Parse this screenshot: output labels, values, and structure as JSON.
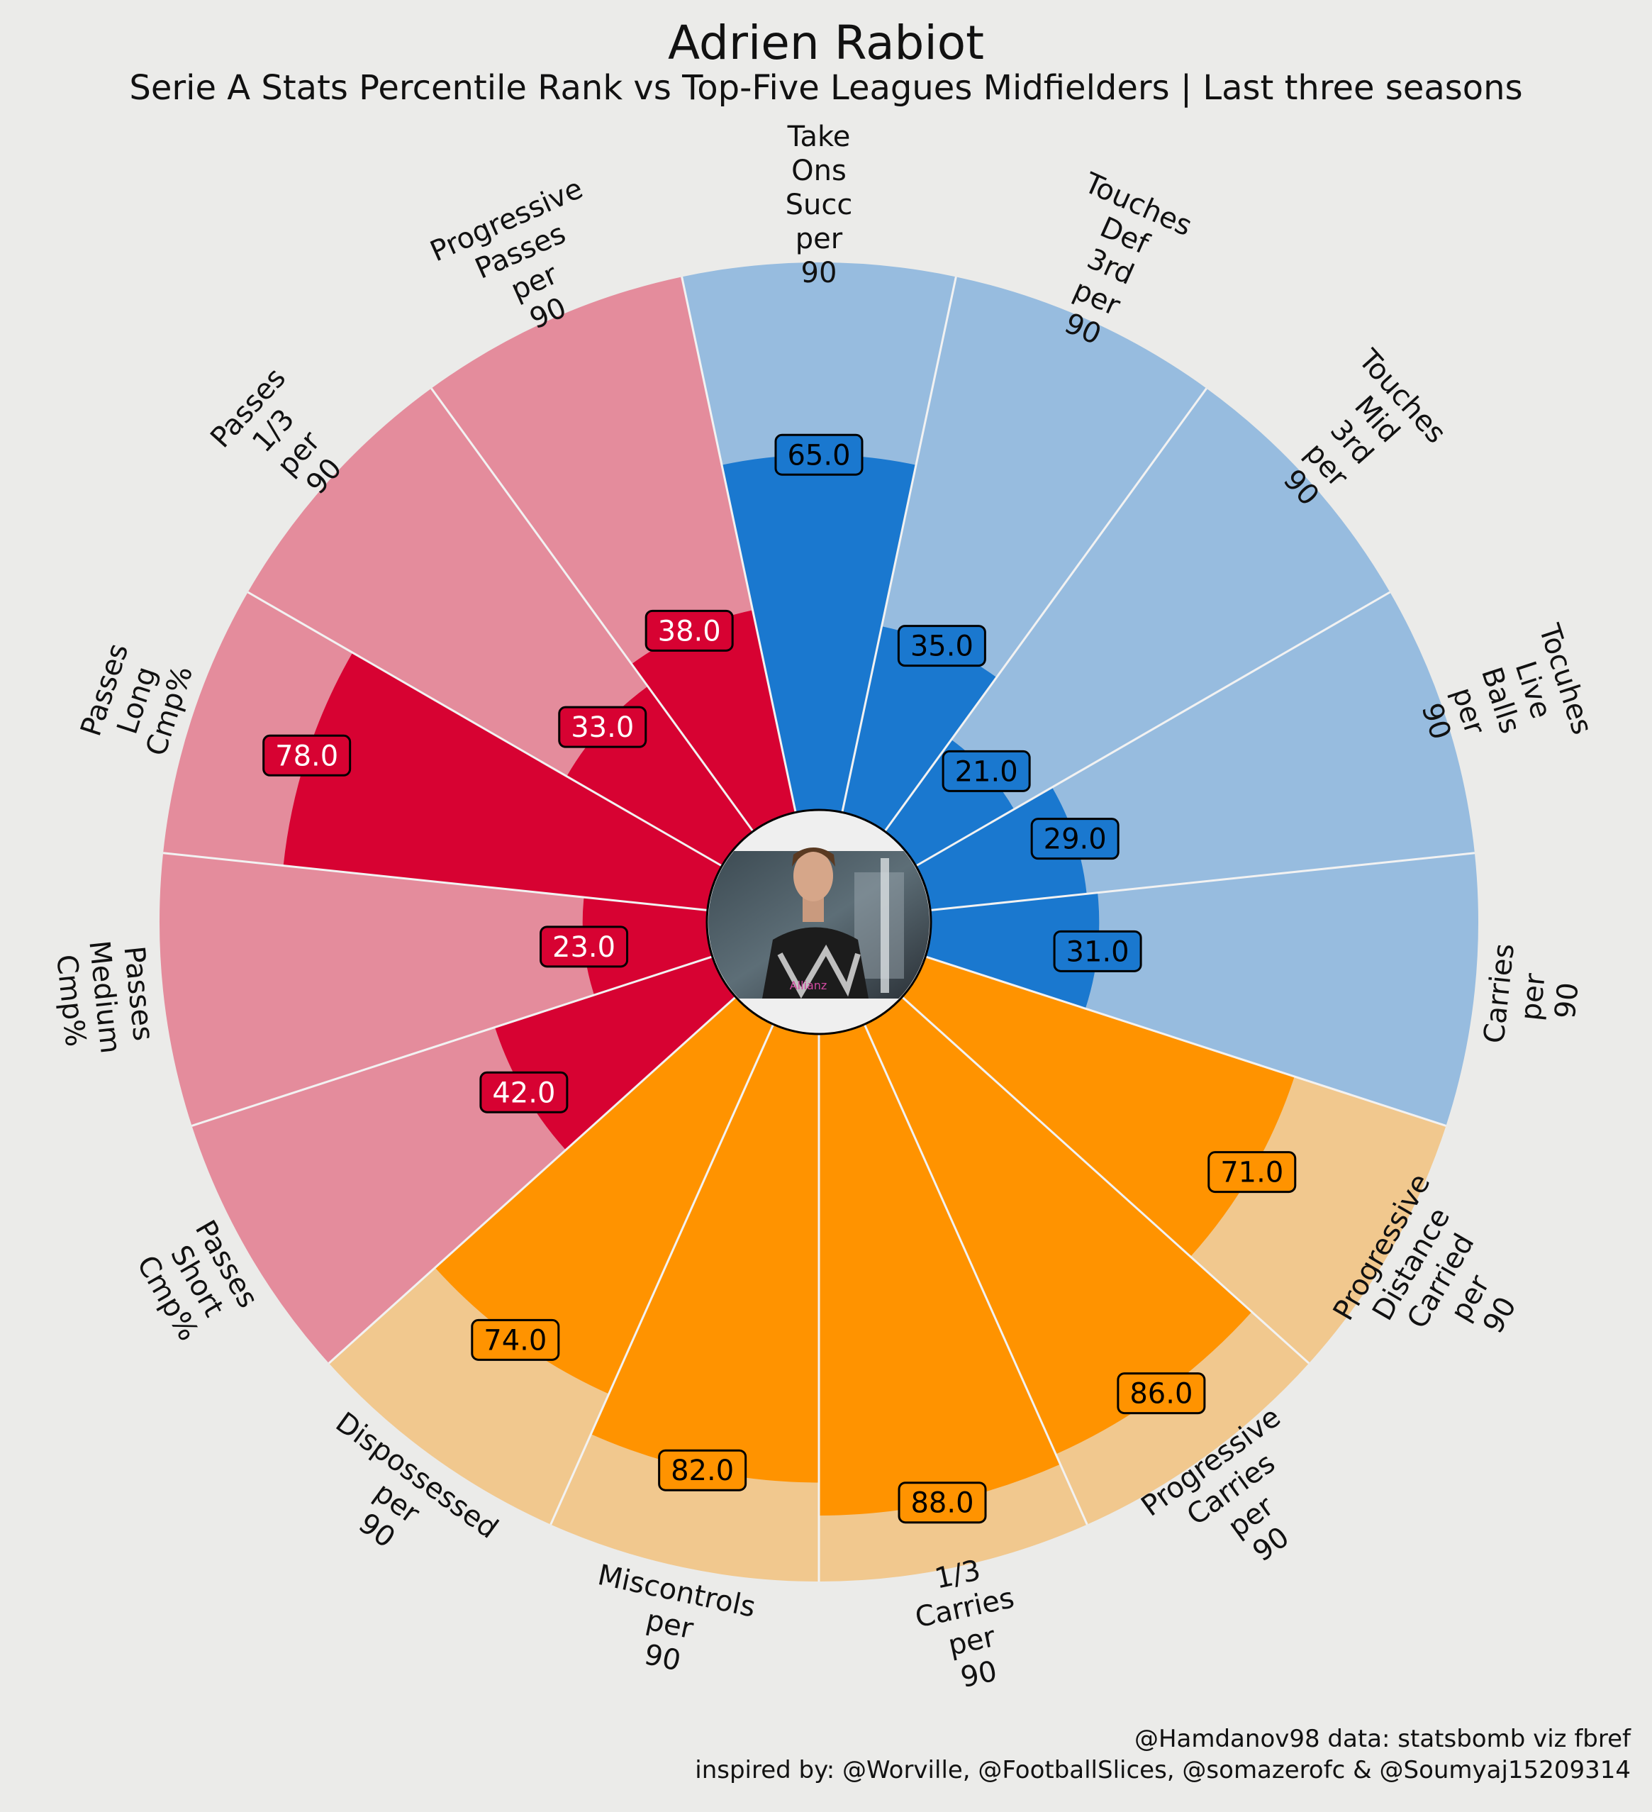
{
  "chart_data": {
    "type": "radial-bar",
    "title": "Adrien Rabiot",
    "subtitle": "Serie A Stats Percentile Rank vs Top-Five Leagues Midfielders | Last three seasons",
    "rlim": [
      0,
      100
    ],
    "groups": {
      "passing": {
        "bright": "#d70232",
        "pale": "#e48c9c",
        "text": "#ffffff"
      },
      "touches": {
        "bright": "#1a78cf",
        "pale": "#97bcdf",
        "text": "#000000"
      },
      "carrying": {
        "bright": "#ff9300",
        "pale": "#f1c88e",
        "text": "#000000"
      }
    },
    "stats": [
      {
        "label": "Take Ons Succ per 90",
        "label_lines": [
          "Take",
          "Ons",
          "Succ",
          "per",
          "90"
        ],
        "value": 65.0,
        "value_text": "65.0",
        "group": "touches"
      },
      {
        "label": "Touches Def 3rd per 90",
        "label_lines": [
          "Touches",
          "Def",
          "3rd",
          "per",
          "90"
        ],
        "value": 35.0,
        "value_text": "35.0",
        "group": "touches"
      },
      {
        "label": "Touches Mid 3rd per 90",
        "label_lines": [
          "Touches",
          "Mid",
          "3rd",
          "per",
          "90"
        ],
        "value": 21.0,
        "value_text": "21.0",
        "group": "touches"
      },
      {
        "label": "Tocuhes Live Balls per 90",
        "label_lines": [
          "Tocuhes",
          "Live",
          "Balls",
          "per",
          "90"
        ],
        "value": 29.0,
        "value_text": "29.0",
        "group": "touches"
      },
      {
        "label": "Carries per 90",
        "label_lines": [
          "Carries",
          "per",
          "90"
        ],
        "value": 31.0,
        "value_text": "31.0",
        "group": "touches"
      },
      {
        "label": "Progressive Distance Carried per 90",
        "label_lines": [
          "Progressive",
          "Distance",
          "Carried",
          "per",
          "90"
        ],
        "value": 71.0,
        "value_text": "71.0",
        "group": "carrying"
      },
      {
        "label": "Progressive Carries per 90",
        "label_lines": [
          "Progressive",
          "Carries",
          "per",
          "90"
        ],
        "value": 86.0,
        "value_text": "86.0",
        "group": "carrying"
      },
      {
        "label": "1/3 Carries per 90",
        "label_lines": [
          "1/3",
          "Carries",
          "per",
          "90"
        ],
        "value": 88.0,
        "value_text": "88.0",
        "group": "carrying"
      },
      {
        "label": "Miscontrols per 90",
        "label_lines": [
          "Miscontrols",
          "per",
          "90"
        ],
        "value": 82.0,
        "value_text": "82.0",
        "group": "carrying"
      },
      {
        "label": "Dispossessed per 90",
        "label_lines": [
          "Dispossessed",
          "per",
          "90"
        ],
        "value": 74.0,
        "value_text": "74.0",
        "group": "carrying"
      },
      {
        "label": "Passes Short Cmp%",
        "label_lines": [
          "Passes",
          "Short",
          "Cmp%"
        ],
        "value": 42.0,
        "value_text": "42.0",
        "group": "passing"
      },
      {
        "label": "Passes Medium Cmp%",
        "label_lines": [
          "Passes",
          "Medium",
          "Cmp%"
        ],
        "value": 23.0,
        "value_text": "23.0",
        "group": "passing"
      },
      {
        "label": "Passes Long Cmp%",
        "label_lines": [
          "Passes",
          "Long",
          "Cmp%"
        ],
        "value": 78.0,
        "value_text": "78.0",
        "group": "passing"
      },
      {
        "label": "Passes 1/3 per 90",
        "label_lines": [
          "Passes",
          "1/3",
          "per",
          "90"
        ],
        "value": 33.0,
        "value_text": "33.0",
        "group": "passing"
      },
      {
        "label": "Progressive Passes per 90",
        "label_lines": [
          "Progressive",
          "Passes",
          "per",
          "90"
        ],
        "value": 38.0,
        "value_text": "38.0",
        "group": "passing"
      }
    ]
  },
  "credits": {
    "line1": "@Hamdanov98 data: statsbomb viz fbref",
    "line2": "inspired by: @Worville, @FootballSlices, @somazerofc & @Soumyaj15209314"
  }
}
